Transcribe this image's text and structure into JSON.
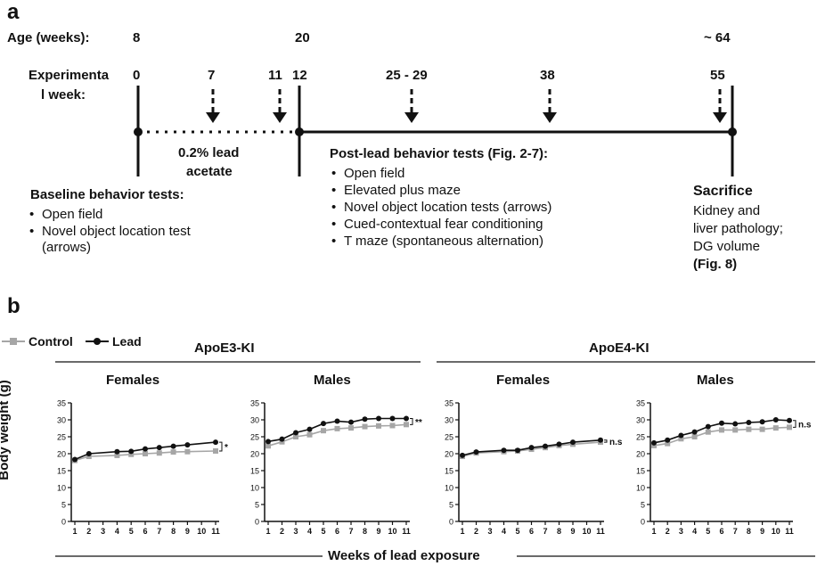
{
  "panel_a": {
    "letter": "a",
    "age_label": "Age (weeks):",
    "age_values": [
      "8",
      "20",
      "~ 64"
    ],
    "week_label_line1": "Experimenta",
    "week_label_line2": "l week:",
    "week_values": [
      "0",
      "7",
      "11",
      "12",
      "25 - 29",
      "38",
      "55"
    ],
    "exposure_label_line1": "0.2% lead",
    "exposure_label_line2": "acetate",
    "baseline": {
      "title": "Baseline behavior tests:",
      "items": [
        "Open field",
        "Novel object location test",
        "(arrows)"
      ]
    },
    "post": {
      "title": "Post-lead behavior tests (Fig. 2-7):",
      "items": [
        "Open field",
        "Elevated plus maze",
        "Novel object location tests (arrows)",
        "Cued-contextual fear conditioning",
        "T maze (spontaneous alternation)"
      ]
    },
    "sacrifice": {
      "title": "Sacrifice",
      "lines": [
        "Kidney and",
        "liver pathology;",
        "DG volume"
      ],
      "ref": "(Fig. 8)"
    }
  },
  "panel_b": {
    "letter": "b",
    "legend": {
      "control": "Control",
      "lead": "Lead"
    },
    "groups": [
      "ApoE3-KI",
      "ApoE4-KI"
    ],
    "ylabel": "Body weight (g)",
    "xlabel": "Weeks of lead exposure",
    "colors": {
      "control": "#a6a6a6",
      "lead": "#111111"
    }
  },
  "chart_data": [
    {
      "type": "line",
      "group": "ApoE3-KI",
      "title": "Females",
      "x": [
        1,
        2,
        4,
        5,
        6,
        7,
        8,
        9,
        11
      ],
      "xticks": [
        1,
        2,
        3,
        4,
        5,
        6,
        7,
        8,
        9,
        10,
        11
      ],
      "ylim": [
        0,
        35
      ],
      "yticks": [
        0,
        5,
        10,
        15,
        20,
        25,
        30,
        35
      ],
      "series": [
        {
          "name": "Control",
          "values": [
            18.0,
            19.2,
            19.5,
            19.8,
            20.0,
            20.2,
            20.5,
            20.6,
            20.8
          ]
        },
        {
          "name": "Lead",
          "values": [
            18.3,
            20.0,
            20.6,
            20.7,
            21.4,
            21.8,
            22.2,
            22.6,
            23.4
          ]
        }
      ],
      "significance": "*"
    },
    {
      "type": "line",
      "group": "ApoE3-KI",
      "title": "Males",
      "x": [
        1,
        2,
        3,
        4,
        5,
        6,
        7,
        8,
        9,
        10,
        11
      ],
      "xticks": [
        1,
        2,
        3,
        4,
        5,
        6,
        7,
        8,
        9,
        10,
        11
      ],
      "ylim": [
        0,
        35
      ],
      "yticks": [
        0,
        5,
        10,
        15,
        20,
        25,
        30,
        35
      ],
      "series": [
        {
          "name": "Control",
          "values": [
            22.3,
            23.5,
            25.0,
            25.6,
            26.8,
            27.4,
            27.6,
            28.0,
            28.2,
            28.3,
            28.6
          ]
        },
        {
          "name": "Lead",
          "values": [
            23.6,
            24.3,
            26.2,
            27.2,
            28.9,
            29.6,
            29.3,
            30.2,
            30.4,
            30.4,
            30.4
          ]
        }
      ],
      "significance": "**"
    },
    {
      "type": "line",
      "group": "ApoE4-KI",
      "title": "Females",
      "x": [
        1,
        2,
        4,
        5,
        6,
        7,
        8,
        9,
        11
      ],
      "xticks": [
        1,
        2,
        3,
        4,
        5,
        6,
        7,
        8,
        9,
        10,
        11
      ],
      "ylim": [
        0,
        35
      ],
      "yticks": [
        0,
        5,
        10,
        15,
        20,
        25,
        30,
        35
      ],
      "series": [
        {
          "name": "Control",
          "values": [
            19.2,
            20.2,
            20.6,
            20.8,
            21.3,
            21.8,
            22.4,
            22.8,
            23.4
          ]
        },
        {
          "name": "Lead",
          "values": [
            19.5,
            20.5,
            21.0,
            21.0,
            21.8,
            22.2,
            22.8,
            23.4,
            24.0
          ]
        }
      ],
      "significance": "n.s"
    },
    {
      "type": "line",
      "group": "ApoE4-KI",
      "title": "Males",
      "x": [
        1,
        2,
        3,
        4,
        5,
        6,
        7,
        8,
        9,
        10,
        11
      ],
      "xticks": [
        1,
        2,
        3,
        4,
        5,
        6,
        7,
        8,
        9,
        10,
        11
      ],
      "ylim": [
        0,
        35
      ],
      "yticks": [
        0,
        5,
        10,
        15,
        20,
        25,
        30,
        35
      ],
      "series": [
        {
          "name": "Control",
          "values": [
            22.4,
            23.0,
            24.4,
            25.0,
            26.4,
            27.0,
            27.0,
            27.2,
            27.2,
            27.6,
            27.8
          ]
        },
        {
          "name": "Lead",
          "values": [
            23.2,
            24.0,
            25.4,
            26.4,
            28.0,
            29.0,
            28.8,
            29.2,
            29.4,
            30.0,
            29.8
          ]
        }
      ],
      "significance": "n.s"
    }
  ]
}
